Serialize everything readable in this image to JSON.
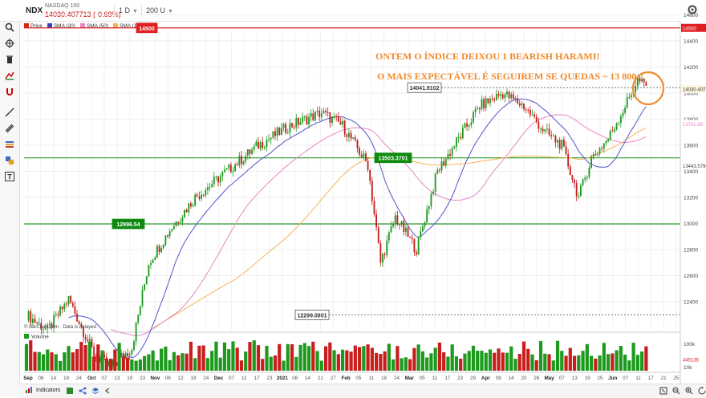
{
  "header": {
    "symbol": "NDX",
    "name": "NASDAQ 100",
    "price_change": "14030.407713 (-0.69%)",
    "interval": "1 D",
    "range": "200 U"
  },
  "legend": [
    {
      "label": "Price",
      "color": "#d9261c"
    },
    {
      "label": "SMA (20)",
      "color": "#3a3fc4"
    },
    {
      "label": "SMA (50)",
      "color": "#e886c4"
    },
    {
      "label": "SMA (100)",
      "color": "#f4b455"
    }
  ],
  "annotations": {
    "line1": "ONTEM O ÍNDICE DEIXOU 1 BEARISH HARAMI!",
    "line2": "O MAIS EXPECTÁVEL É SEGUIREM SE QUEDAS ~ 13 800",
    "color": "#f08a2c"
  },
  "levels": {
    "red": "14500",
    "green_upper": "13503.3701",
    "green_lower": "12996.54",
    "box_high": "14041.9102",
    "box_low": "12299.0801"
  },
  "price_axis": {
    "ticks": [
      "14600",
      "14400",
      "14200",
      "14000",
      "13800",
      "13600",
      "13400",
      "13200",
      "13000",
      "12800",
      "12600",
      "12400"
    ],
    "current_label": "14030.4077",
    "sma20_label": "13443.5790",
    "sma50_label": "13762.89"
  },
  "volume": {
    "label": "Volume",
    "ticks": [
      "100k",
      "10k"
    ],
    "current": "445135"
  },
  "x_labels": [
    "Sep",
    "08",
    "14",
    "18",
    "24",
    "Oct",
    "07",
    "13",
    "19",
    "23",
    "Nov",
    "06",
    "12",
    "18",
    "24",
    "Dec",
    "07",
    "11",
    "17",
    "23",
    "2021",
    "08",
    "14",
    "21",
    "27",
    "Feb",
    "05",
    "11",
    "18",
    "24",
    "Mar",
    "05",
    "11",
    "17",
    "23",
    "29",
    "Apr",
    "08",
    "14",
    "20",
    "26",
    "May",
    "07",
    "13",
    "19",
    "25",
    "Jun",
    "07",
    "11",
    "17",
    "21",
    "25"
  ],
  "copyright": "© BarChart.com · Data is delayed",
  "bottom": {
    "indicators": "Indicators"
  }
}
